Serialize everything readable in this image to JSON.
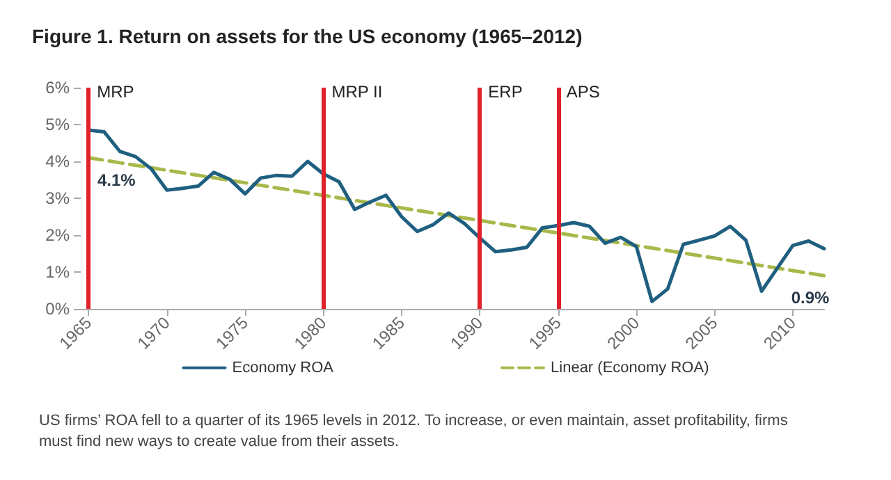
{
  "chart_data": {
    "type": "line",
    "title": "Figure 1. Return on assets for the US economy (1965–2012)",
    "x": [
      1965,
      1966,
      1967,
      1968,
      1969,
      1970,
      1971,
      1972,
      1973,
      1974,
      1975,
      1976,
      1977,
      1978,
      1979,
      1980,
      1981,
      1982,
      1983,
      1984,
      1985,
      1986,
      1987,
      1988,
      1989,
      1990,
      1991,
      1992,
      1993,
      1994,
      1995,
      1996,
      1997,
      1998,
      1999,
      2000,
      2001,
      2002,
      2003,
      2004,
      2005,
      2006,
      2007,
      2008,
      2009,
      2010,
      2011,
      2012
    ],
    "series": [
      {
        "name": "Economy ROA",
        "color": "#1f5f80",
        "values": [
          4.85,
          4.8,
          4.27,
          4.13,
          3.8,
          3.22,
          3.27,
          3.33,
          3.7,
          3.52,
          3.12,
          3.55,
          3.62,
          3.6,
          4.0,
          3.66,
          3.45,
          2.7,
          2.9,
          3.08,
          2.5,
          2.1,
          2.28,
          2.6,
          2.32,
          1.92,
          1.55,
          1.6,
          1.67,
          2.2,
          2.26,
          2.34,
          2.24,
          1.78,
          1.94,
          1.69,
          0.2,
          0.54,
          1.75,
          1.86,
          1.98,
          2.24,
          1.86,
          0.48,
          1.1,
          1.72,
          1.84,
          1.63
        ]
      },
      {
        "name": "Linear (Economy ROA)",
        "color": "#a8b84a",
        "line_style": "dashed",
        "x": [
          1965,
          2012
        ],
        "values": [
          4.1,
          0.9
        ]
      }
    ],
    "xlim": [
      1964.5,
      2012
    ],
    "xticks": [
      1965,
      1970,
      1975,
      1980,
      1985,
      1990,
      1995,
      2000,
      2005,
      2010
    ],
    "ylim": [
      0,
      6
    ],
    "yticks": [
      {
        "value": 0,
        "label": "0%"
      },
      {
        "value": 1,
        "label": "1%"
      },
      {
        "value": 2,
        "label": "2%"
      },
      {
        "value": 3,
        "label": "3%"
      },
      {
        "value": 4,
        "label": "4%"
      },
      {
        "value": 5,
        "label": "5%"
      },
      {
        "value": 6,
        "label": "6%"
      }
    ],
    "ref_lines": [
      {
        "axis": "x",
        "value": 1965,
        "label": "MRP",
        "color": "#e0202a"
      },
      {
        "axis": "x",
        "value": 1980,
        "label": "MRP II",
        "color": "#e0202a"
      },
      {
        "axis": "x",
        "value": 1990,
        "label": "ERP",
        "color": "#e0202a"
      },
      {
        "axis": "x",
        "value": 1995,
        "label": "APS",
        "color": "#e0202a"
      }
    ],
    "annotations": [
      {
        "text": "4.1%",
        "x": 1965,
        "y": 4.1
      },
      {
        "text": "0.9%",
        "x": 2012,
        "y": 0.9
      },
      "US firms’ ROA fell to a quarter of its 1965 levels in 2012. To increase, or even maintain, asset profitability, firms must find new ways to create value from their assets."
    ],
    "legend": "bottom",
    "grid": false,
    "marker": "none",
    "line_style": "solid"
  }
}
